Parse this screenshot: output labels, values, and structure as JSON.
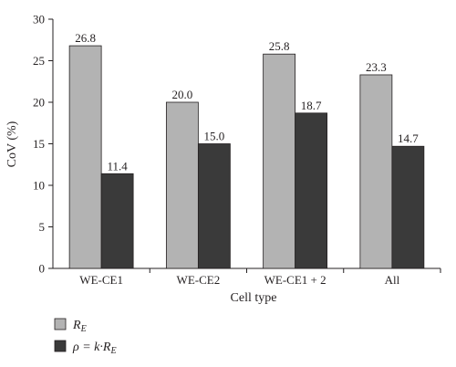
{
  "chart_data": {
    "type": "bar",
    "title": "",
    "xlabel": "Cell type",
    "ylabel": "CoV (%)",
    "ylim": [
      0,
      30
    ],
    "yticks": [
      "0",
      "5",
      "10",
      "15",
      "20",
      "25",
      "30"
    ],
    "categories": [
      "WE-CE1",
      "WE-CE2",
      "WE-CE1 + 2",
      "All"
    ],
    "series": [
      {
        "legend_main": "R",
        "legend_sub": "E",
        "color": "#b3b3b3",
        "values": [
          26.8,
          20.0,
          25.8,
          23.3
        ],
        "labels": [
          "26.8",
          "20.0",
          "25.8",
          "23.3"
        ]
      },
      {
        "legend_main": "ρ = k·R",
        "legend_sub": "E",
        "color": "#3a3a3a",
        "values": [
          11.4,
          15.0,
          18.7,
          14.7
        ],
        "labels": [
          "11.4",
          "15.0",
          "18.7",
          "14.7"
        ]
      }
    ],
    "grid": false,
    "legend_position": "bottom-left"
  }
}
